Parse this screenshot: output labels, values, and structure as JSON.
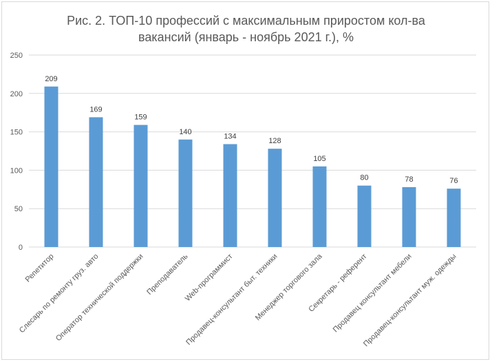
{
  "chart_data": {
    "type": "bar",
    "title_line1": "Рис. 2. ТОП-10 профессий с максимальным приростом кол-ва",
    "title_line2": "вакансий (январь - ноябрь 2021 г.), %",
    "categories": [
      "Репетитор",
      "Слесарь по ремонту груз. авто",
      "Оператор технической поддержки",
      "Преподаватель",
      "Web-программист",
      "Продавец-консультант быт. техники",
      "Менеджер торгового зала",
      "Секретарь - референт",
      "Продавец консультант мебели",
      "Продавец-консультант муж. одежды"
    ],
    "values": [
      209,
      169,
      159,
      140,
      134,
      128,
      105,
      80,
      78,
      76
    ],
    "ylim": [
      0,
      250
    ],
    "yticks": [
      0,
      50,
      100,
      150,
      200,
      250
    ],
    "grid": true,
    "bar_color": "#5b9bd5",
    "grid_color": "#d9d9d9"
  }
}
